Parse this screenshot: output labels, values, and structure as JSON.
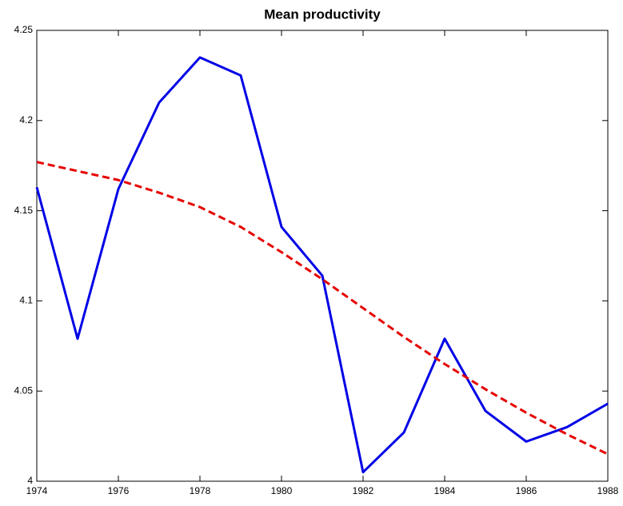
{
  "chart_data": {
    "type": "line",
    "title": "Mean productivity",
    "x": [
      1974,
      1975,
      1976,
      1977,
      1978,
      1979,
      1980,
      1981,
      1982,
      1983,
      1984,
      1985,
      1986,
      1987,
      1988
    ],
    "series": [
      {
        "color": "#0000e6",
        "dash": "solid",
        "values": [
          4.163,
          4.079,
          4.162,
          4.21,
          4.235,
          4.225,
          4.141,
          4.114,
          4.005,
          4.027,
          4.079,
          4.039,
          4.022,
          4.03,
          4.043
        ]
      },
      {
        "color": "#e60000",
        "dash": "dashed",
        "values": [
          4.177,
          4.172,
          4.167,
          4.16,
          4.152,
          4.141,
          4.127,
          4.112,
          4.096,
          4.08,
          4.065,
          4.051,
          4.038,
          4.026,
          4.015
        ]
      }
    ],
    "xlim": [
      1974,
      1988
    ],
    "xticks": [
      1974,
      1976,
      1978,
      1980,
      1982,
      1984,
      1986,
      1988
    ],
    "ylim": [
      4,
      4.25
    ],
    "yticks": [
      4,
      4.05,
      4.1,
      4.15,
      4.2,
      4.25
    ],
    "grid": false
  }
}
